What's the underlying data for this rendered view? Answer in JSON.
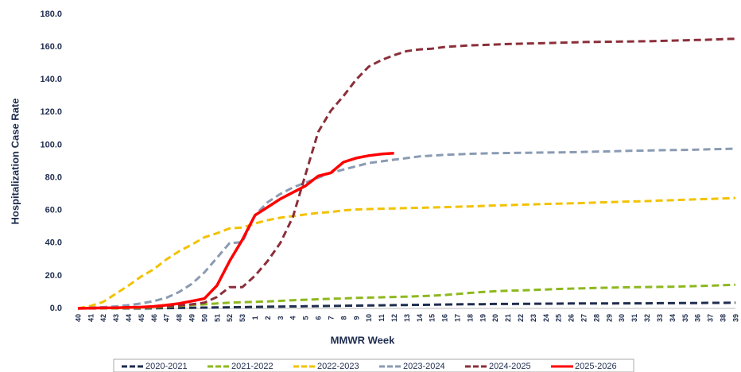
{
  "chart_data": {
    "type": "line",
    "y_label": "Hospitalization Case Rate",
    "x_label": "MMWR Week",
    "categories": [
      "40",
      "41",
      "42",
      "43",
      "44",
      "45",
      "46",
      "47",
      "48",
      "49",
      "50",
      "51",
      "52",
      "53",
      "1",
      "2",
      "3",
      "4",
      "5",
      "6",
      "7",
      "8",
      "9",
      "10",
      "11",
      "12",
      "13",
      "14",
      "15",
      "16",
      "17",
      "18",
      "19",
      "20",
      "21",
      "22",
      "23",
      "24",
      "25",
      "26",
      "27",
      "28",
      "29",
      "30",
      "31",
      "32",
      "33",
      "34",
      "35",
      "36",
      "37",
      "38",
      "39"
    ],
    "ylim": [
      0,
      180
    ],
    "yticks": [
      {
        "value": 0,
        "label": "0.0"
      },
      {
        "value": 20,
        "label": "20.0"
      },
      {
        "value": 40,
        "label": "40.0"
      },
      {
        "value": 60,
        "label": "60.0"
      },
      {
        "value": 80,
        "label": "80.0"
      },
      {
        "value": 100,
        "label": "100.0"
      },
      {
        "value": 120,
        "label": "120.0"
      },
      {
        "value": 140,
        "label": "140.0"
      },
      {
        "value": 160,
        "label": "160.0"
      },
      {
        "value": 180,
        "label": "180.0"
      }
    ],
    "grid": false,
    "legend": "bottom",
    "series": [
      {
        "name": "2020-2021",
        "color": "#1f2d4f",
        "line_style": "dashed",
        "values": [
          0,
          0,
          0,
          0,
          0,
          0,
          0.1,
          0.2,
          0.3,
          0.4,
          0.5,
          0.6,
          0.7,
          0.8,
          0.9,
          1.0,
          1.1,
          1.2,
          1.3,
          1.4,
          1.5,
          1.6,
          1.7,
          1.8,
          1.9,
          2.0,
          2.1,
          2.2,
          2.3,
          2.4,
          2.5,
          2.6,
          2.6,
          2.7,
          2.7,
          2.8,
          2.8,
          2.9,
          2.9,
          3.0,
          3.0,
          3.0,
          3.0,
          3.1,
          3.1,
          3.1,
          3.2,
          3.2,
          3.3,
          3.3,
          3.4,
          3.4,
          3.5
        ]
      },
      {
        "name": "2021-2022",
        "color": "#8db81e",
        "line_style": "dashed",
        "values": [
          0,
          0,
          0,
          0,
          0.2,
          0.4,
          0.6,
          1.0,
          1.5,
          2.0,
          2.5,
          3.0,
          3.5,
          3.8,
          4.0,
          4.3,
          4.6,
          5.0,
          5.3,
          5.6,
          5.9,
          6.1,
          6.4,
          6.6,
          6.8,
          7.0,
          7.2,
          7.5,
          7.8,
          8.2,
          8.8,
          9.5,
          10.0,
          10.5,
          10.8,
          11.0,
          11.3,
          11.6,
          11.9,
          12.1,
          12.3,
          12.5,
          12.7,
          12.9,
          13.0,
          13.1,
          13.2,
          13.3,
          13.5,
          13.7,
          13.9,
          14.2,
          14.5
        ]
      },
      {
        "name": "2022-2023",
        "color": "#f2c200",
        "line_style": "dashed",
        "values": [
          0,
          1.5,
          4,
          9,
          14,
          19.5,
          24,
          30,
          35,
          39,
          43.5,
          46,
          49,
          49.5,
          52,
          54,
          55.5,
          56.5,
          57.5,
          58.5,
          59,
          60,
          60.5,
          60.8,
          61,
          61.2,
          61.4,
          61.6,
          61.8,
          62.0,
          62.2,
          62.4,
          62.7,
          63.0,
          63.2,
          63.5,
          63.7,
          63.9,
          64.1,
          64.3,
          64.5,
          64.8,
          65.0,
          65.3,
          65.5,
          65.7,
          66.0,
          66.2,
          66.5,
          66.8,
          67.0,
          67.3,
          67.6
        ]
      },
      {
        "name": "2023-2024",
        "color": "#8a9bb3",
        "line_style": "dashed",
        "values": [
          0,
          0.5,
          0.8,
          1.2,
          2,
          3,
          4.5,
          6.5,
          10,
          15,
          22,
          31,
          40,
          40.5,
          57,
          65,
          70,
          74,
          77,
          80,
          83,
          85,
          87,
          89,
          90,
          91,
          92,
          93,
          93.5,
          94,
          94.3,
          94.6,
          94.8,
          95,
          95.1,
          95.2,
          95.3,
          95.4,
          95.5,
          95.6,
          95.8,
          96,
          96.1,
          96.3,
          96.5,
          96.6,
          96.8,
          96.9,
          97,
          97.2,
          97.4,
          97.6,
          97.8
        ]
      },
      {
        "name": "2024-2025",
        "color": "#8b2f3a",
        "line_style": "dashed",
        "values": [
          0,
          0,
          0.2,
          0.4,
          0.6,
          0.8,
          1,
          1.3,
          1.8,
          2.5,
          3.5,
          7,
          13,
          13,
          20,
          29,
          40,
          56,
          82,
          108,
          121,
          130,
          140,
          148,
          152,
          155,
          157.5,
          158.5,
          159,
          160,
          160.5,
          161,
          161.2,
          161.5,
          161.8,
          162,
          162.2,
          162.4,
          162.6,
          162.8,
          163,
          163.1,
          163.2,
          163.3,
          163.4,
          163.5,
          163.7,
          163.9,
          164.1,
          164.3,
          164.5,
          164.8,
          165
        ]
      },
      {
        "name": "2025-2026",
        "color": "#ff0000",
        "line_style": "solid",
        "values": [
          0,
          0.2,
          0.3,
          0.4,
          0.6,
          0.8,
          1.2,
          2,
          3,
          4.5,
          6,
          14,
          29,
          42,
          57,
          62,
          67,
          71,
          75,
          81,
          83,
          89.5,
          92,
          93.5,
          94.5,
          95,
          null,
          null,
          null,
          null,
          null,
          null,
          null,
          null,
          null,
          null,
          null,
          null,
          null,
          null,
          null,
          null,
          null,
          null,
          null,
          null,
          null,
          null,
          null,
          null,
          null,
          null,
          null
        ]
      }
    ]
  }
}
